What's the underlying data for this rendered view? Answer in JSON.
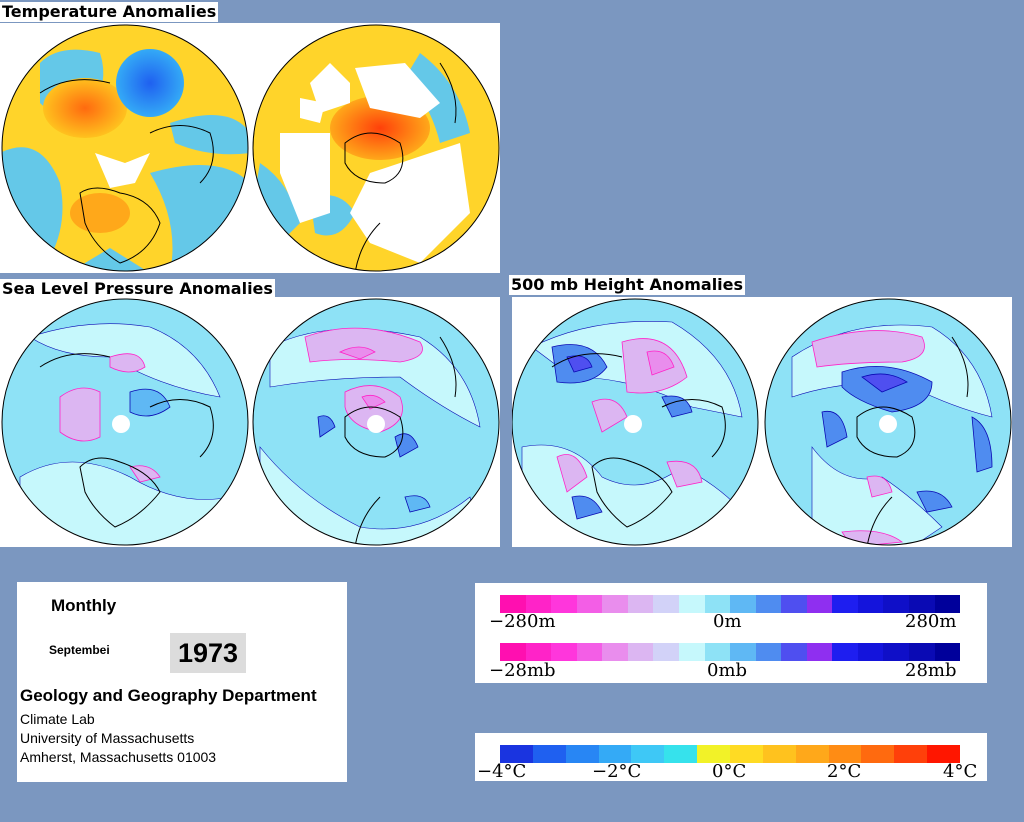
{
  "sections": {
    "temperature": "Temperature Anomalies",
    "slp": "Sea Level Pressure Anomalies",
    "height": "500 mb Height Anomalies"
  },
  "info": {
    "period": "Monthly",
    "month": "Septembei",
    "year": "1973",
    "department": "Geology and Geography Department",
    "lines": [
      "Climate Lab",
      "University of Massachusetts",
      "Amherst, Massachusetts 01003"
    ]
  },
  "legend_height": {
    "left": "−280m",
    "mid": "0m",
    "right": "280m"
  },
  "legend_pressure": {
    "left": "−28mb",
    "mid": "0mb",
    "right": "28mb"
  },
  "legend_temp": {
    "labels": [
      "−4°C",
      "−2°C",
      "0°C",
      "2°C",
      "4°C"
    ]
  },
  "colors": {
    "height_pressure_scale": [
      "#ff0fb0",
      "#ff23c8",
      "#ff36dc",
      "#f35ee6",
      "#e98ded",
      "#dcb6f2",
      "#d2d2f8",
      "#c6f8fc",
      "#8ee2f6",
      "#5fb8f4",
      "#4f8cf0",
      "#4f4ff0",
      "#8f2ff0",
      "#1e1ef0",
      "#1414dc",
      "#0f0fc8",
      "#0a0ab4",
      "#00009b"
    ],
    "temperature_scale": [
      "#1a34e0",
      "#1f60f0",
      "#2886f4",
      "#34aaf6",
      "#3ec8f6",
      "#36e2ec",
      "#f2f228",
      "#ffdb23",
      "#ffc21e",
      "#ffa81a",
      "#ff8c14",
      "#ff6a0f",
      "#ff400a",
      "#ff1600"
    ],
    "map_base_cool": "#64c8e8",
    "map_base_warm": "#ffd42a",
    "map_base_pale": "#c6f8fc",
    "map_base_blue": "#8ee2f6"
  }
}
